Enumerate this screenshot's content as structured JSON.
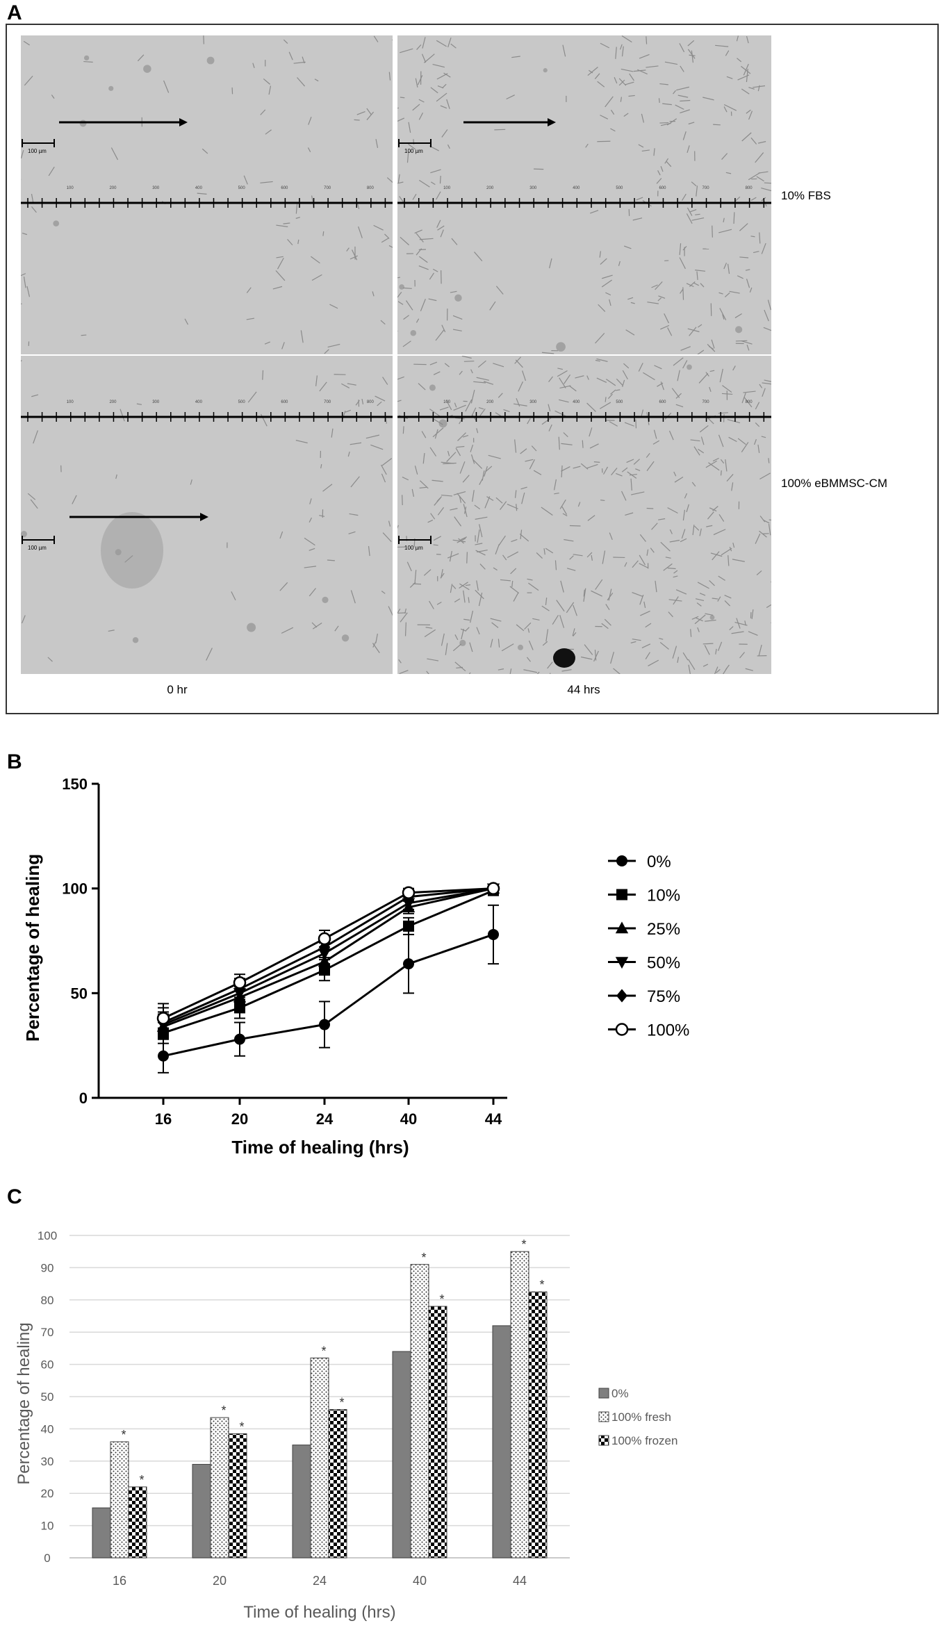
{
  "panel_a": {
    "letter": "A",
    "rows": [
      {
        "label": "10% FBS"
      },
      {
        "label": "100% eBMMSC-CM"
      }
    ],
    "columns": [
      {
        "label": "0 hr"
      },
      {
        "label": "44 hrs"
      }
    ],
    "scale_bar_label": "100 µm",
    "ruler_ticks": [
      "100",
      "200",
      "300",
      "400",
      "500",
      "600",
      "700",
      "800"
    ]
  },
  "panel_b": {
    "letter": "B"
  },
  "panel_c": {
    "letter": "C"
  },
  "colors": {
    "line": "#000000",
    "bar_gray": "#7f7f7f",
    "grid": "#d9d9d9",
    "micro_bg": "#c8c8c8"
  },
  "chart_data": [
    {
      "id": "panel_b",
      "type": "line",
      "categories": [
        "16",
        "20",
        "24",
        "40",
        "44"
      ],
      "xlabel": "Time of healing (hrs)",
      "ylabel": "Percentage of healing",
      "ylim": [
        0,
        150
      ],
      "yticks": [
        "0",
        "50",
        "100",
        "150"
      ],
      "legend_position": "right",
      "series": [
        {
          "name": "0%",
          "marker": "circle-filled",
          "values": [
            20,
            28,
            35,
            64,
            78
          ],
          "errors": [
            8,
            8,
            11,
            14,
            14
          ]
        },
        {
          "name": "10%",
          "marker": "square",
          "values": [
            31,
            43,
            61,
            82,
            99
          ],
          "errors": [
            5,
            5,
            5,
            4,
            2
          ]
        },
        {
          "name": "25%",
          "marker": "triangle-up",
          "values": [
            34,
            48,
            65,
            91,
            100
          ],
          "errors": [
            6,
            5,
            6,
            3,
            2
          ]
        },
        {
          "name": "50%",
          "marker": "triangle-down",
          "values": [
            35,
            50,
            69,
            93,
            100
          ],
          "errors": [
            6,
            5,
            5,
            3,
            2
          ]
        },
        {
          "name": "75%",
          "marker": "diamond",
          "values": [
            36,
            52,
            72,
            96,
            100
          ],
          "errors": [
            7,
            5,
            5,
            2,
            2
          ]
        },
        {
          "name": "100%",
          "marker": "circle-open",
          "values": [
            38,
            55,
            76,
            98,
            100
          ],
          "errors": [
            7,
            4,
            4,
            2,
            1
          ]
        }
      ]
    },
    {
      "id": "panel_c",
      "type": "bar",
      "categories": [
        "16",
        "20",
        "24",
        "40",
        "44"
      ],
      "xlabel": "Time of healing (hrs)",
      "ylabel": "Percentage of healing",
      "ylim": [
        0,
        100
      ],
      "yticks": [
        "0",
        "10",
        "20",
        "30",
        "40",
        "50",
        "60",
        "70",
        "80",
        "90",
        "100"
      ],
      "grid": true,
      "legend_position": "right",
      "significance_marker": "*",
      "series": [
        {
          "name": "0%",
          "pattern": "solid-gray",
          "values": [
            15.5,
            29,
            35,
            64,
            72
          ],
          "significant": [
            false,
            false,
            false,
            false,
            false
          ]
        },
        {
          "name": "100% fresh",
          "pattern": "dots",
          "values": [
            36,
            43.5,
            62,
            91,
            95
          ],
          "significant": [
            true,
            true,
            true,
            true,
            true
          ]
        },
        {
          "name": "100% frozen",
          "pattern": "checker",
          "values": [
            22,
            38.5,
            46,
            78,
            82.5
          ],
          "significant": [
            true,
            true,
            true,
            true,
            true
          ]
        }
      ]
    }
  ]
}
